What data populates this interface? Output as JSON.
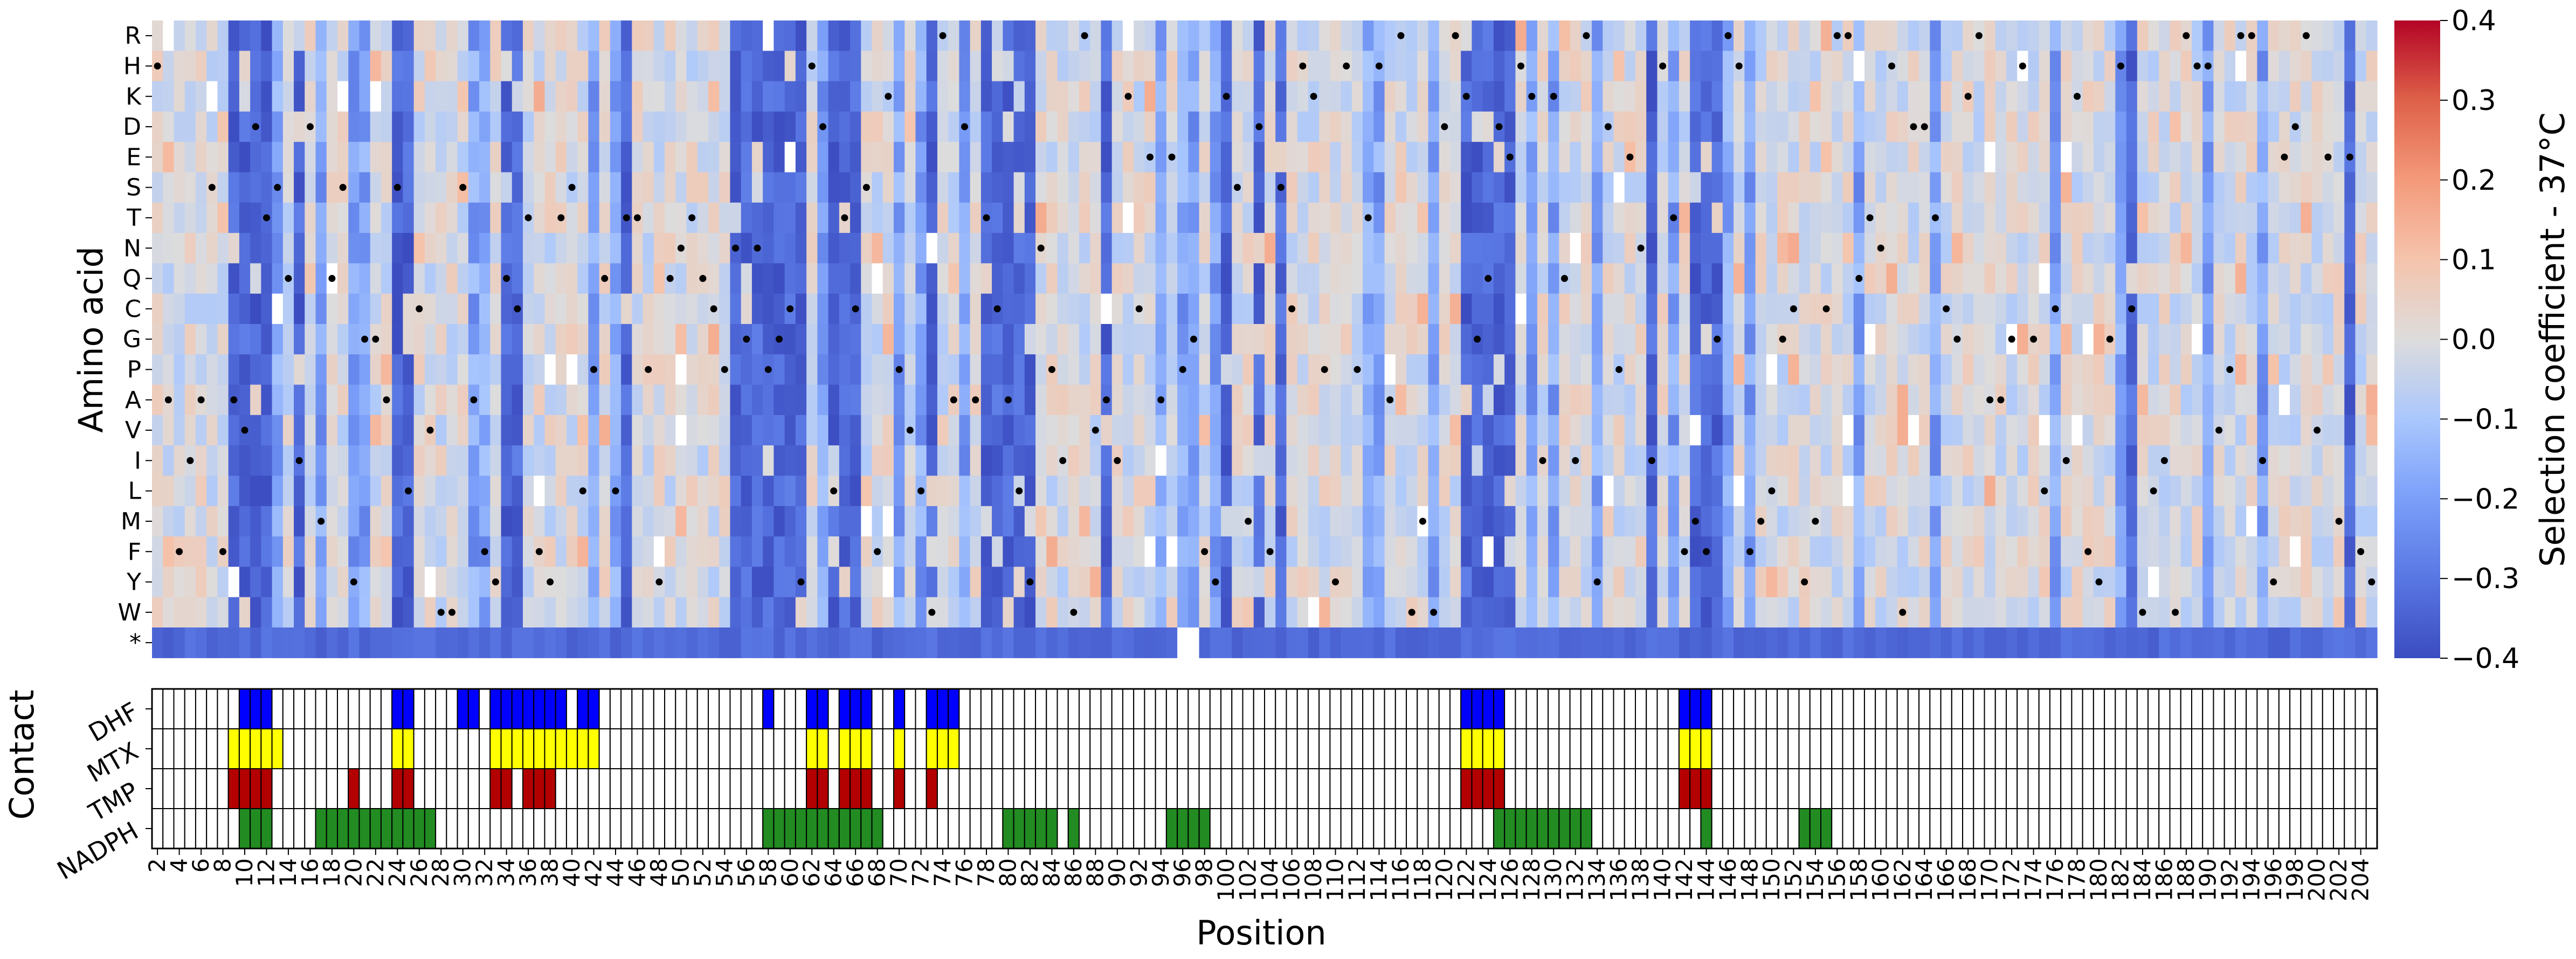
{
  "chart_data": [
    {
      "type": "heatmap",
      "title": "",
      "xlabel": "",
      "ylabel": "Amino acid",
      "y_categories": [
        "R",
        "H",
        "K",
        "D",
        "E",
        "S",
        "T",
        "N",
        "Q",
        "C",
        "G",
        "P",
        "A",
        "V",
        "I",
        "L",
        "M",
        "F",
        "Y",
        "W",
        "*"
      ],
      "x_range": [
        2,
        205
      ],
      "colorbar": {
        "label": "Selection coefficient - 37°C",
        "range": [
          -0.4,
          0.4
        ],
        "ticks": [
          0.4,
          0.3,
          0.2,
          0.1,
          0.0,
          -0.1,
          -0.2,
          -0.3,
          -0.4
        ],
        "tick_labels": [
          "0.4",
          "0.3",
          "0.2",
          "0.1",
          "0.0",
          "−0.1",
          "−0.2",
          "−0.3",
          "−0.4"
        ],
        "colormap": "coolwarm",
        "missing_color": "#ffffff"
      },
      "strongly_deleterious_positions": [
        9,
        10,
        11,
        12,
        15,
        24,
        25,
        34,
        35,
        45,
        55,
        56,
        57,
        58,
        59,
        60,
        61,
        64,
        65,
        66,
        73,
        78,
        79,
        80,
        81,
        82,
        89,
        100,
        103,
        105,
        122,
        123,
        124,
        125,
        126,
        139,
        143,
        144,
        145,
        183,
        203
      ],
      "moderately_deleterious_positions": [
        13,
        17,
        20,
        21,
        31,
        32,
        42,
        44,
        63,
        70,
        72,
        76,
        94,
        96,
        97,
        99,
        113,
        114,
        119,
        128,
        130,
        134,
        141,
        146,
        148,
        158,
        165,
        176,
        182,
        190,
        195
      ],
      "stop_codon_row_value": -0.33,
      "wildtype_marker": "black dot marks the wild-type residue at each position"
    },
    {
      "type": "table",
      "xlabel": "Position",
      "ylabel": "Contact",
      "x_tick_labels": [
        "2",
        "4",
        "6",
        "8",
        "10",
        "12",
        "14",
        "16",
        "18",
        "20",
        "22",
        "24",
        "26",
        "28",
        "30",
        "32",
        "34",
        "36",
        "38",
        "40",
        "42",
        "44",
        "46",
        "48",
        "50",
        "52",
        "54",
        "56",
        "58",
        "60",
        "62",
        "64",
        "66",
        "68",
        "70",
        "72",
        "74",
        "76",
        "78",
        "80",
        "82",
        "84",
        "86",
        "88",
        "90",
        "92",
        "94",
        "96",
        "98",
        "100",
        "102",
        "104",
        "106",
        "108",
        "110",
        "112",
        "114",
        "116",
        "118",
        "120",
        "122",
        "124",
        "126",
        "128",
        "130",
        "132",
        "134",
        "136",
        "138",
        "140",
        "142",
        "144",
        "146",
        "148",
        "150",
        "152",
        "154",
        "156",
        "158",
        "160",
        "162",
        "164",
        "166",
        "168",
        "170",
        "172",
        "174",
        "176",
        "178",
        "180",
        "182",
        "184",
        "186",
        "188",
        "190",
        "192",
        "194",
        "196",
        "198",
        "200",
        "202",
        "204"
      ],
      "rows": [
        {
          "name": "DHF",
          "color": "#0000ff",
          "positions": [
            10,
            11,
            12,
            24,
            25,
            30,
            31,
            33,
            34,
            35,
            36,
            37,
            38,
            39,
            41,
            42,
            58,
            62,
            63,
            65,
            66,
            67,
            70,
            73,
            74,
            75,
            122,
            123,
            124,
            125,
            142,
            143,
            144
          ]
        },
        {
          "name": "MTX",
          "color": "#ffff00",
          "positions": [
            9,
            10,
            11,
            12,
            13,
            24,
            25,
            33,
            34,
            35,
            36,
            37,
            38,
            39,
            40,
            41,
            42,
            62,
            63,
            65,
            66,
            67,
            70,
            73,
            74,
            75,
            122,
            123,
            124,
            125,
            142,
            143,
            144
          ]
        },
        {
          "name": "TMP",
          "color": "#b30000",
          "positions": [
            9,
            10,
            11,
            12,
            20,
            24,
            25,
            33,
            34,
            36,
            37,
            38,
            62,
            63,
            65,
            66,
            67,
            70,
            73,
            122,
            123,
            124,
            125,
            142,
            143,
            144
          ]
        },
        {
          "name": "NADPH",
          "color": "#228b22",
          "positions": [
            10,
            11,
            12,
            17,
            18,
            19,
            20,
            21,
            22,
            23,
            24,
            25,
            26,
            27,
            58,
            59,
            60,
            61,
            62,
            63,
            64,
            65,
            66,
            67,
            68,
            80,
            81,
            82,
            83,
            84,
            86,
            95,
            96,
            97,
            98,
            125,
            126,
            127,
            128,
            129,
            130,
            131,
            132,
            133,
            144,
            153,
            154,
            155
          ]
        }
      ]
    }
  ]
}
